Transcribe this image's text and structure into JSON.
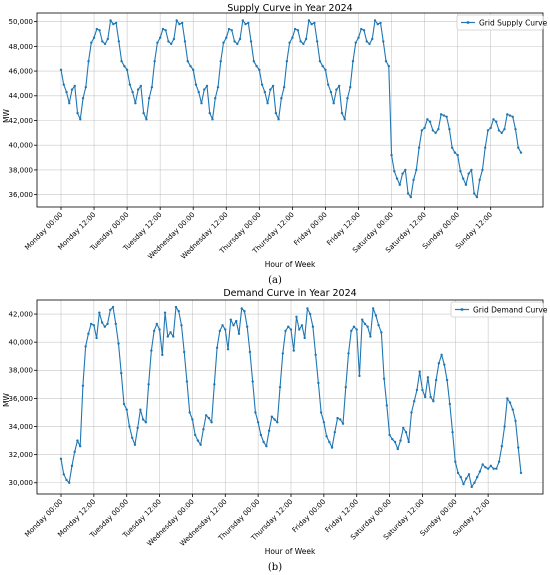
{
  "chart_data": [
    {
      "type": "line",
      "title": "Supply Curve in Year 2024",
      "xlabel": "Hour of Week",
      "ylabel": "MW",
      "caption": "(a)",
      "ylim": [
        35000,
        50700
      ],
      "yticks": [
        36000,
        38000,
        40000,
        42000,
        44000,
        46000,
        48000,
        50000
      ],
      "ytick_labels": [
        "36,000",
        "38,000",
        "40,000",
        "42,000",
        "44,000",
        "46,000",
        "48,000",
        "50,000"
      ],
      "xtick_hours": [
        0,
        12,
        24,
        36,
        48,
        60,
        72,
        84,
        96,
        108,
        120,
        132,
        144,
        156
      ],
      "xtick_labels": [
        "Monday 00:00",
        "Monday 12:00",
        "Tuesday 00:00",
        "Tuesday 12:00",
        "Wednesday 00:00",
        "Wednesday 12:00",
        "Thursday 00:00",
        "Thursday 12:00",
        "Friday 00:00",
        "Friday 12:00",
        "Saturday 00:00",
        "Saturday 12:00",
        "Sunday 00:00",
        "Sunday 12:00"
      ],
      "grid": true,
      "legend_position": "top-right",
      "series": [
        {
          "name": "Grid Supply Curve",
          "color": "#1f77b4",
          "values": [
            46100,
            44900,
            44300,
            43400,
            44500,
            44800,
            42600,
            42100,
            43800,
            44700,
            46800,
            48300,
            48700,
            49400,
            49300,
            48400,
            48200,
            48600,
            50100,
            49800,
            49900,
            48400,
            46800,
            46400,
            46100,
            44900,
            44300,
            43400,
            44500,
            44800,
            42600,
            42100,
            43800,
            44700,
            46800,
            48300,
            48700,
            49400,
            49300,
            48400,
            48200,
            48600,
            50100,
            49800,
            49900,
            48400,
            46800,
            46400,
            46100,
            44900,
            44300,
            43400,
            44500,
            44800,
            42600,
            42100,
            43800,
            44700,
            46800,
            48300,
            48700,
            49400,
            49300,
            48400,
            48200,
            48600,
            50100,
            49800,
            49900,
            48400,
            46800,
            46400,
            46100,
            44900,
            44300,
            43400,
            44500,
            44800,
            42600,
            42100,
            43800,
            44700,
            46800,
            48300,
            48700,
            49400,
            49300,
            48400,
            48200,
            48600,
            50100,
            49800,
            49900,
            48400,
            46800,
            46400,
            46100,
            44900,
            44300,
            43400,
            44500,
            44800,
            42600,
            42100,
            43800,
            44700,
            46800,
            48300,
            48700,
            49400,
            49300,
            48400,
            48200,
            48600,
            50100,
            49800,
            49900,
            48400,
            46800,
            46400,
            39200,
            37900,
            37300,
            36800,
            37700,
            38000,
            36100,
            35800,
            37200,
            38000,
            39800,
            41200,
            41400,
            42100,
            41900,
            41200,
            41000,
            41300,
            42500,
            42400,
            42300,
            41300,
            39800,
            39400,
            39200,
            37900,
            37300,
            36800,
            37700,
            38000,
            36100,
            35800,
            37200,
            38000,
            39800,
            41200,
            41400,
            42100,
            41900,
            41200,
            41000,
            41300,
            42500,
            42400,
            42300,
            41300,
            39800,
            39400
          ]
        }
      ]
    },
    {
      "type": "line",
      "title": "Demand Curve in Year 2024",
      "xlabel": "Hour of Week",
      "ylabel": "MW",
      "caption": "(b)",
      "ylim": [
        29200,
        43000
      ],
      "yticks": [
        30000,
        32000,
        34000,
        36000,
        38000,
        40000,
        42000
      ],
      "ytick_labels": [
        "30,000",
        "32,000",
        "34,000",
        "36,000",
        "38,000",
        "40,000",
        "42,000"
      ],
      "xtick_hours": [
        0,
        12,
        24,
        36,
        48,
        60,
        72,
        84,
        96,
        108,
        120,
        132,
        144,
        156
      ],
      "xtick_labels": [
        "Monday 00:00",
        "Monday 12:00",
        "Tuesday 00:00",
        "Tuesday 12:00",
        "Wednesday 00:00",
        "Wednesday 12:00",
        "Thursday 00:00",
        "Thursday 12:00",
        "Friday 00:00",
        "Friday 12:00",
        "Saturday 00:00",
        "Saturday 12:00",
        "Sunday 00:00",
        "Sunday 12:00"
      ],
      "grid": true,
      "legend_position": "top-right",
      "series": [
        {
          "name": "Grid Demand Curve",
          "color": "#1f77b4",
          "values": [
            31700,
            30600,
            30200,
            30000,
            31200,
            32200,
            33000,
            32600,
            36900,
            39700,
            40600,
            41300,
            41200,
            40300,
            42100,
            41400,
            41100,
            41300,
            42300,
            42500,
            41300,
            39900,
            37800,
            35600,
            35200,
            34000,
            33200,
            32700,
            33900,
            35200,
            34500,
            34300,
            37000,
            39400,
            40800,
            41300,
            40900,
            39100,
            42100,
            40400,
            40700,
            40400,
            42500,
            42200,
            41200,
            39300,
            37200,
            35000,
            34500,
            33400,
            33000,
            32700,
            33800,
            34800,
            34600,
            34300,
            37000,
            39600,
            40800,
            41200,
            40900,
            39500,
            41600,
            41200,
            41500,
            40600,
            42400,
            42200,
            41100,
            39300,
            37200,
            35000,
            34300,
            33400,
            32900,
            32600,
            33700,
            34700,
            34500,
            34300,
            36800,
            39200,
            40800,
            41100,
            40900,
            39400,
            41800,
            40900,
            41200,
            40300,
            42400,
            42000,
            41100,
            39100,
            37100,
            35000,
            34300,
            33300,
            32900,
            32500,
            33600,
            34600,
            34500,
            34200,
            36800,
            39200,
            40800,
            41100,
            40900,
            37600,
            41600,
            41300,
            41100,
            40400,
            42400,
            41900,
            41200,
            40700,
            37400,
            35500,
            33400,
            33100,
            32900,
            32400,
            33000,
            33900,
            33600,
            32900,
            35000,
            35800,
            36600,
            37900,
            36600,
            36100,
            37500,
            36100,
            35800,
            37300,
            38500,
            39100,
            38400,
            37300,
            35600,
            33600,
            31500,
            30700,
            30400,
            29900,
            30300,
            30600,
            29700,
            30000,
            30400,
            30800,
            31300,
            31100,
            31000,
            31200,
            31000,
            31000,
            31500,
            32600,
            34000,
            36000,
            35700,
            35200,
            34400,
            32500,
            30700
          ]
        }
      ]
    }
  ]
}
